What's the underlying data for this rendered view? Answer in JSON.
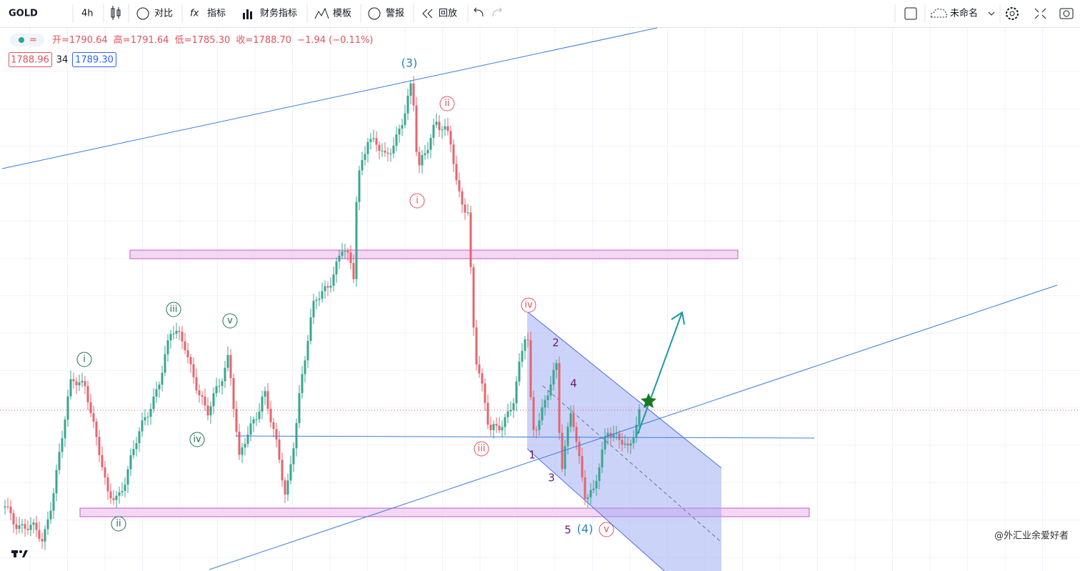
{
  "toolbar": {
    "symbol": "GOLD",
    "interval": "4h",
    "items": [
      "对比",
      "指标",
      "财务指标",
      "模板",
      "警报",
      "回放"
    ],
    "layout_name": "未命名"
  },
  "legend": {
    "open": "开=1790.64",
    "high": "高=1791.64",
    "low": "低=1785.30",
    "close": "收=1788.70",
    "change": "−1.94 (−0.11%)"
  },
  "price_boxes": {
    "bid": "1788.96",
    "spread": "34",
    "ask": "1789.30"
  },
  "waves": {
    "primary": [
      "(3)",
      "(4)"
    ],
    "minor_green": [
      "i",
      "ii",
      "iii",
      "iv",
      "v"
    ],
    "minor_red": [
      "i",
      "ii",
      "iii",
      "iv",
      "v"
    ],
    "sub": [
      "1",
      "2",
      "3",
      "4",
      "5"
    ]
  },
  "watermark": "@外汇业余爱好者"
}
